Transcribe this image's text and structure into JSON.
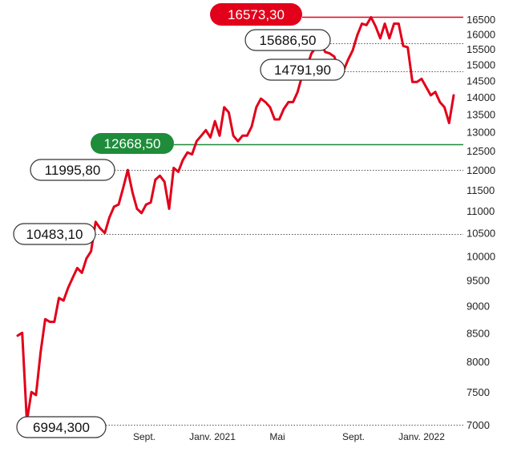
{
  "chart_data": {
    "type": "line",
    "title": "",
    "xlabel": "",
    "ylabel": "",
    "x_ticks": [
      "Sept.",
      "Janv. 2021",
      "Mai",
      "Sept.",
      "Janv. 2022"
    ],
    "y_ticks": [
      7000,
      7500,
      8000,
      8500,
      9000,
      9500,
      10000,
      10500,
      11000,
      11500,
      12000,
      12500,
      13000,
      13500,
      14000,
      14500,
      15000,
      15500,
      16000,
      16500
    ],
    "y_scale": "log",
    "ylim": [
      6950,
      16700
    ],
    "grid": "dotted horizontal lines for annotated levels",
    "colors": {
      "line": "#e2001a",
      "high": "#e2001a",
      "ref": "#1e8c3a"
    },
    "series": [
      {
        "values": [
          8450,
          8500,
          7050,
          7500,
          7450,
          8150,
          8750,
          8700,
          8700,
          9150,
          9100,
          9350,
          9550,
          9750,
          9650,
          9950,
          10100,
          10750,
          10600,
          10500,
          10850,
          11100,
          11150,
          11550,
          11995.8,
          11450,
          11050,
          10950,
          11150,
          11200,
          11750,
          11850,
          11700,
          11050,
          12050,
          11950,
          12250,
          12450,
          12400,
          12750,
          12900,
          13050,
          12850,
          13300,
          12900,
          13700,
          13550,
          12900,
          12750,
          12900,
          12900,
          13150,
          13700,
          13950,
          13850,
          13700,
          13350,
          13350,
          13650,
          13850,
          13850,
          14150,
          14650,
          14900,
          15350,
          15550,
          15686.5,
          15400,
          15350,
          15250,
          14800,
          14800,
          15150,
          15450,
          15950,
          16350,
          16300,
          16573.3,
          16250,
          15850,
          16350,
          15850,
          16350,
          16350,
          15600,
          15550,
          14450,
          14450,
          14550,
          14300,
          14050,
          14150,
          13850,
          13700,
          13250,
          14050
        ]
      }
    ],
    "annotations": [
      {
        "label": "16573,30",
        "value": 16573.3,
        "style": "high"
      },
      {
        "label": "15686,50",
        "value": 15686.5,
        "style": "outline"
      },
      {
        "label": "14791,90",
        "value": 14791.9,
        "style": "outline"
      },
      {
        "label": "12668,50",
        "value": 12668.5,
        "style": "reference"
      },
      {
        "label": "11995,80",
        "value": 11995.8,
        "style": "outline"
      },
      {
        "label": "10483,10",
        "value": 10483.1,
        "style": "outline"
      },
      {
        "label": "6994,300",
        "value": 6994.3,
        "style": "outline"
      }
    ]
  }
}
